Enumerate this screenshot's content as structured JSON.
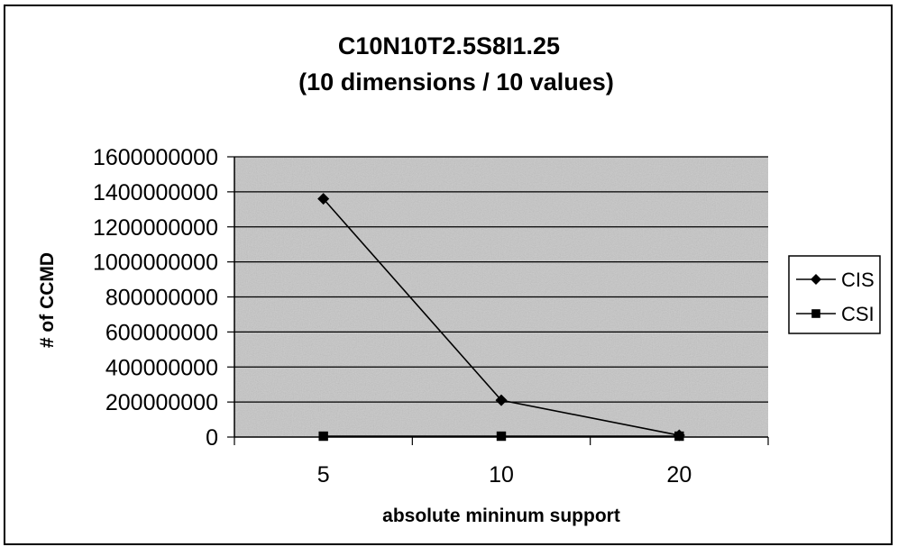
{
  "chart_data": {
    "type": "line",
    "title": "C10N10T2.5S8I1.25",
    "subtitle": "(10 dimensions / 10 values)",
    "xlabel": "absolute mininum support",
    "ylabel": "# of CCMD",
    "categories": [
      "5",
      "10",
      "20"
    ],
    "ylim": [
      0,
      1600000000
    ],
    "yticks": [
      "0",
      "200000000",
      "400000000",
      "600000000",
      "800000000",
      "1000000000",
      "1200000000",
      "1400000000",
      "1600000000"
    ],
    "grid": true,
    "legend_position": "right",
    "series": [
      {
        "name": "CIS",
        "marker": "diamond",
        "values": [
          1360000000,
          210000000,
          10000000
        ]
      },
      {
        "name": "CSI",
        "marker": "square",
        "values": [
          5000000,
          5000000,
          5000000
        ]
      }
    ]
  },
  "colors": {
    "plot_background": "#c6c6c6",
    "gridline": "#000000",
    "series_line": "#000000",
    "border": "#000000"
  }
}
